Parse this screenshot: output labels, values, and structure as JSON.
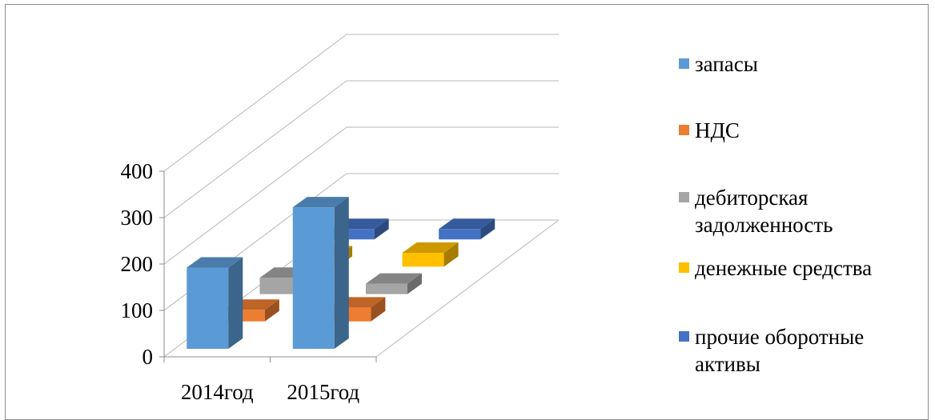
{
  "chart_data": {
    "type": "bar",
    "categories": [
      "2014год",
      "2015год"
    ],
    "series": [
      {
        "name": "запасы",
        "values": [
          175,
          305
        ],
        "color": "#5B9BD5"
      },
      {
        "name": "НДС",
        "values": [
          25,
          30
        ],
        "color": "#ED7D31"
      },
      {
        "name": "дебиторская задолженность",
        "values": [
          35,
          15
        ],
        "color": "#A5A5A5"
      },
      {
        "name": "денежные средства",
        "values": [
          0,
          30
        ],
        "color": "#FFC000"
      },
      {
        "name": "прочие оборотные активы",
        "values": [
          0,
          0
        ],
        "color": "#4472C4"
      }
    ],
    "y_ticks": [
      "0",
      "100",
      "200",
      "300",
      "400"
    ],
    "ylim": [
      0,
      400
    ],
    "grid": true,
    "legend": "right",
    "style": "3d-column"
  }
}
